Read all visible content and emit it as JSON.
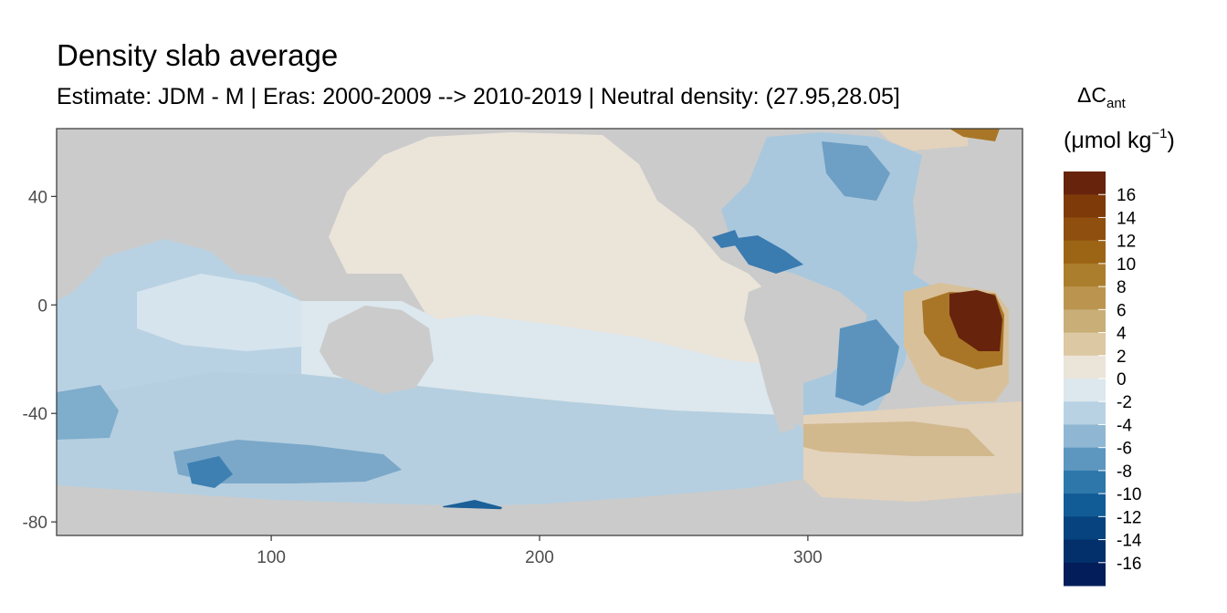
{
  "title": "Density slab average",
  "subtitle": "Estimate: JDM - M | Eras: 2000-2009 --> 2010-2019 | Neutral density: (27.95,28.05]",
  "legend": {
    "title_symbol": "ΔC",
    "title_subscript": "ant",
    "unit_prefix": "(μmol kg",
    "unit_superscript": "−1",
    "unit_suffix": ")",
    "labels": [
      "16",
      "14",
      "12",
      "10",
      "8",
      "6",
      "4",
      "2",
      "0",
      "-2",
      "-4",
      "-6",
      "-8",
      "-10",
      "-12",
      "-14",
      "-16"
    ],
    "colors": [
      "#67230c",
      "#7f3a0a",
      "#8f4f0e",
      "#9c6516",
      "#ab7e2d",
      "#bb9550",
      "#c9ae78",
      "#dcc8a2",
      "#ebe4d9",
      "#dce7ee",
      "#b8d2e3",
      "#8fb7d3",
      "#5d97c0",
      "#2d77aa",
      "#115c97",
      "#07437f",
      "#03306b",
      "#021d59"
    ]
  },
  "chart_data": {
    "type": "heatmap",
    "title": "Density slab average",
    "xlabel": "",
    "ylabel": "",
    "xlim": [
      20,
      380
    ],
    "ylim": [
      -85,
      65
    ],
    "x_ticks": [
      100,
      200,
      300
    ],
    "y_ticks": [
      40,
      0,
      -40,
      -80
    ],
    "colorbar": {
      "min": -16,
      "max": 16,
      "step": 2
    },
    "grid": true,
    "legend_position": "right"
  }
}
